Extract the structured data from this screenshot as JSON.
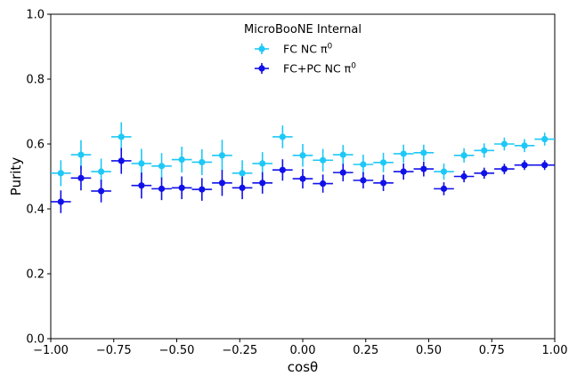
{
  "chart_data": {
    "type": "scatter",
    "title": "",
    "legend_title": "MicroBooNE Internal",
    "legend_position": "top-center",
    "xlabel": "cosθ",
    "ylabel": "Purity",
    "xlim": [
      -1.0,
      1.0
    ],
    "ylim": [
      0.0,
      1.0
    ],
    "xticks": [
      "−1.00",
      "−0.75",
      "−0.50",
      "−0.25",
      "0.00",
      "0.25",
      "0.50",
      "0.75",
      "1.00"
    ],
    "yticks": [
      "0.0",
      "0.2",
      "0.4",
      "0.6",
      "0.8",
      "1.0"
    ],
    "grid": false,
    "x": [
      -0.96,
      -0.88,
      -0.8,
      -0.72,
      -0.64,
      -0.56,
      -0.48,
      -0.4,
      -0.32,
      -0.24,
      -0.16,
      -0.08,
      0.0,
      0.08,
      0.16,
      0.24,
      0.32,
      0.4,
      0.48,
      0.56,
      0.64,
      0.72,
      0.8,
      0.88,
      0.96
    ],
    "x_halfwidth": 0.04,
    "series": [
      {
        "name": "FC NC π⁰",
        "legend_label": "FC NC π",
        "legend_sup": "0",
        "color": "#1ec8f7",
        "values": [
          0.51,
          0.567,
          0.515,
          0.622,
          0.54,
          0.532,
          0.552,
          0.544,
          0.565,
          0.51,
          0.54,
          0.622,
          0.565,
          0.55,
          0.567,
          0.537,
          0.543,
          0.57,
          0.573,
          0.515,
          0.565,
          0.58,
          0.6,
          0.595,
          0.615
        ],
        "errors": [
          0.04,
          0.045,
          0.04,
          0.045,
          0.045,
          0.04,
          0.04,
          0.04,
          0.048,
          0.04,
          0.035,
          0.035,
          0.035,
          0.035,
          0.03,
          0.03,
          0.03,
          0.028,
          0.025,
          0.025,
          0.022,
          0.022,
          0.02,
          0.02,
          0.02
        ]
      },
      {
        "name": "FC+PC NC π⁰",
        "legend_label": "FC+PC NC π",
        "legend_sup": "0",
        "color": "#1010e8",
        "values": [
          0.422,
          0.495,
          0.455,
          0.548,
          0.472,
          0.462,
          0.465,
          0.46,
          0.48,
          0.465,
          0.48,
          0.52,
          0.493,
          0.478,
          0.512,
          0.488,
          0.48,
          0.515,
          0.523,
          0.462,
          0.5,
          0.51,
          0.523,
          0.535,
          0.535
        ],
        "errors": [
          0.035,
          0.038,
          0.035,
          0.04,
          0.04,
          0.035,
          0.035,
          0.035,
          0.04,
          0.035,
          0.033,
          0.033,
          0.03,
          0.028,
          0.027,
          0.025,
          0.025,
          0.025,
          0.023,
          0.02,
          0.018,
          0.017,
          0.016,
          0.015,
          0.015
        ]
      }
    ]
  }
}
